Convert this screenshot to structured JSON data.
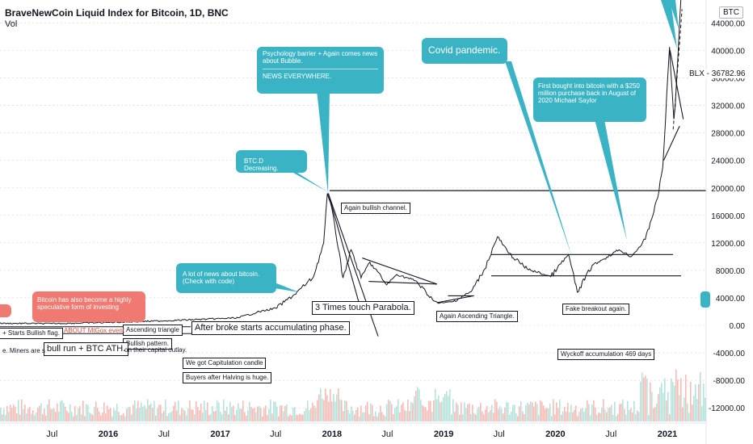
{
  "header": {
    "title": "BraveNewCoin Liquid Index for Bitcoin, 1D, BNC",
    "vol_label": "Vol",
    "currency_tag": "BTC",
    "price_tag": "BLX - 36782.96"
  },
  "colors": {
    "teal": "#3ab4c4",
    "red_callout": "#f07a72",
    "price_line": "#131722",
    "vol_up": "#9fd8d0",
    "vol_down": "#f2a6a0"
  },
  "chart_data": {
    "type": "line",
    "y_ticks": [
      "44000.00",
      "40000.00",
      "36000.00",
      "32000.00",
      "28000.00",
      "24000.00",
      "20000.00",
      "16000.00",
      "12000.00",
      "8000.00",
      "4000.00",
      "0.00",
      "-4000.00",
      "-8000.00",
      "-12000.00"
    ],
    "x_ticks": [
      "Jul",
      "2016",
      "Jul",
      "2017",
      "Jul",
      "2018",
      "Jul",
      "2019",
      "Jul",
      "2020",
      "Jul",
      "2021"
    ],
    "ylim": [
      -13000,
      48000
    ],
    "series": [
      {
        "x": [
          "2015-01-01",
          "2015-07-01",
          "2016-01-01",
          "2016-07-01",
          "2017-01-01",
          "2017-03-01",
          "2017-05-01",
          "2017-07-01",
          "2017-09-01",
          "2017-11-01",
          "2017-12-05",
          "2017-12-17",
          "2018-01-05",
          "2018-02-06",
          "2018-03-05",
          "2018-04-06",
          "2018-05-05",
          "2018-06-29",
          "2018-08-01",
          "2018-10-01",
          "2018-11-25",
          "2018-12-15",
          "2019-02-01",
          "2019-04-01",
          "2019-05-15",
          "2019-06-26",
          "2019-08-01",
          "2019-10-01",
          "2019-12-17",
          "2020-02-13",
          "2020-03-13",
          "2020-04-30",
          "2020-06-01",
          "2020-07-27",
          "2020-09-05",
          "2020-10-21",
          "2020-11-30",
          "2020-12-17",
          "2021-01-08",
          "2021-01-22",
          "2021-01-27",
          "2021-02-15"
        ],
        "values": [
          300,
          260,
          420,
          660,
          980,
          1100,
          1900,
          2500,
          4500,
          7000,
          12000,
          19200,
          16000,
          6900,
          11000,
          6900,
          9200,
          5900,
          7400,
          6500,
          3800,
          3200,
          3450,
          4900,
          8200,
          12900,
          10500,
          8200,
          7100,
          10300,
          4800,
          8700,
          9500,
          11000,
          10000,
          12500,
          18500,
          23000,
          40500,
          30000,
          32000,
          48000
        ]
      }
    ],
    "levels": [
      19600,
      10300,
      7200
    ],
    "annotations": {
      "callouts": [
        "Psychology barrier + Again comes news about Bubble.",
        "NEWS EVERYWHERE.",
        "Covid pandemic.",
        "First bought into bitcoin with a $250 million purchase back in August of 2020 Michael Saylor",
        "BTC.D Decreasing.",
        "A lot of news about bitcoin. (Check with code)",
        "Bitcoin has also become a highly speculative form of investing"
      ],
      "boxes": [
        "Again bullish channel.",
        "3 Times touch Parabola.",
        "After broke starts accumulating phase.",
        "Again Ascending Triangle.",
        "Fake breakout again.",
        "Wyckoff accumulation 469 days",
        "Ascending triangle",
        "Bullish pattern.",
        "We got Capitulation candle",
        "Buyers after Halving is huge.",
        "bull run + BTC ATH.",
        "+ Starts Bullish flag.",
        "ABOUT MtGox event",
        "e. Miners are s",
        "on their capital outlay."
      ]
    }
  }
}
